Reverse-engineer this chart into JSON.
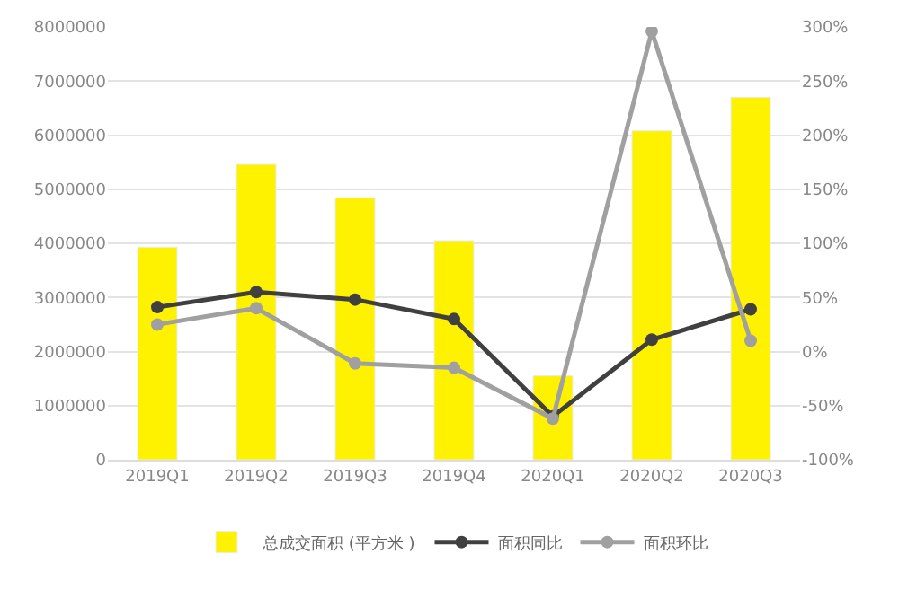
{
  "chart_data": {
    "type": "bar",
    "categories": [
      "2019Q1",
      "2019Q2",
      "2019Q3",
      "2019Q4",
      "2020Q1",
      "2020Q2",
      "2020Q3"
    ],
    "series": [
      {
        "name": "总成交面积 (平方米 )",
        "color": "#fff200",
        "values": [
          3930000,
          5460000,
          4840000,
          4050000,
          1550000,
          6080000,
          6700000
        ]
      },
      {
        "name": "面积同比",
        "type": "line",
        "axis": "y2",
        "color": "#404040",
        "values": [
          41,
          55,
          48,
          30,
          -60,
          11,
          39
        ]
      },
      {
        "name": "面积环比",
        "type": "line",
        "axis": "y2",
        "color": "#a0a0a0",
        "values": [
          25,
          40,
          -11,
          -15,
          -62,
          296,
          10
        ]
      }
    ],
    "ylim": [
      0,
      8000000
    ],
    "yticks": [
      0,
      1000000,
      2000000,
      3000000,
      4000000,
      5000000,
      6000000,
      7000000,
      8000000
    ],
    "y2lim": [
      -100,
      300
    ],
    "y2ticks": [
      {
        "value": -100,
        "label": "-100%"
      },
      {
        "value": -50,
        "label": "-50%"
      },
      {
        "value": 0,
        "label": "0%"
      },
      {
        "value": 50,
        "label": "50%"
      },
      {
        "value": 100,
        "label": "100%"
      },
      {
        "value": 150,
        "label": "150%"
      },
      {
        "value": 200,
        "label": "200%"
      },
      {
        "value": 250,
        "label": "250%"
      },
      {
        "value": 300,
        "label": "300%"
      }
    ],
    "grid": "y",
    "legend": "bottom",
    "marker": "circle",
    "line_style": "solid"
  }
}
